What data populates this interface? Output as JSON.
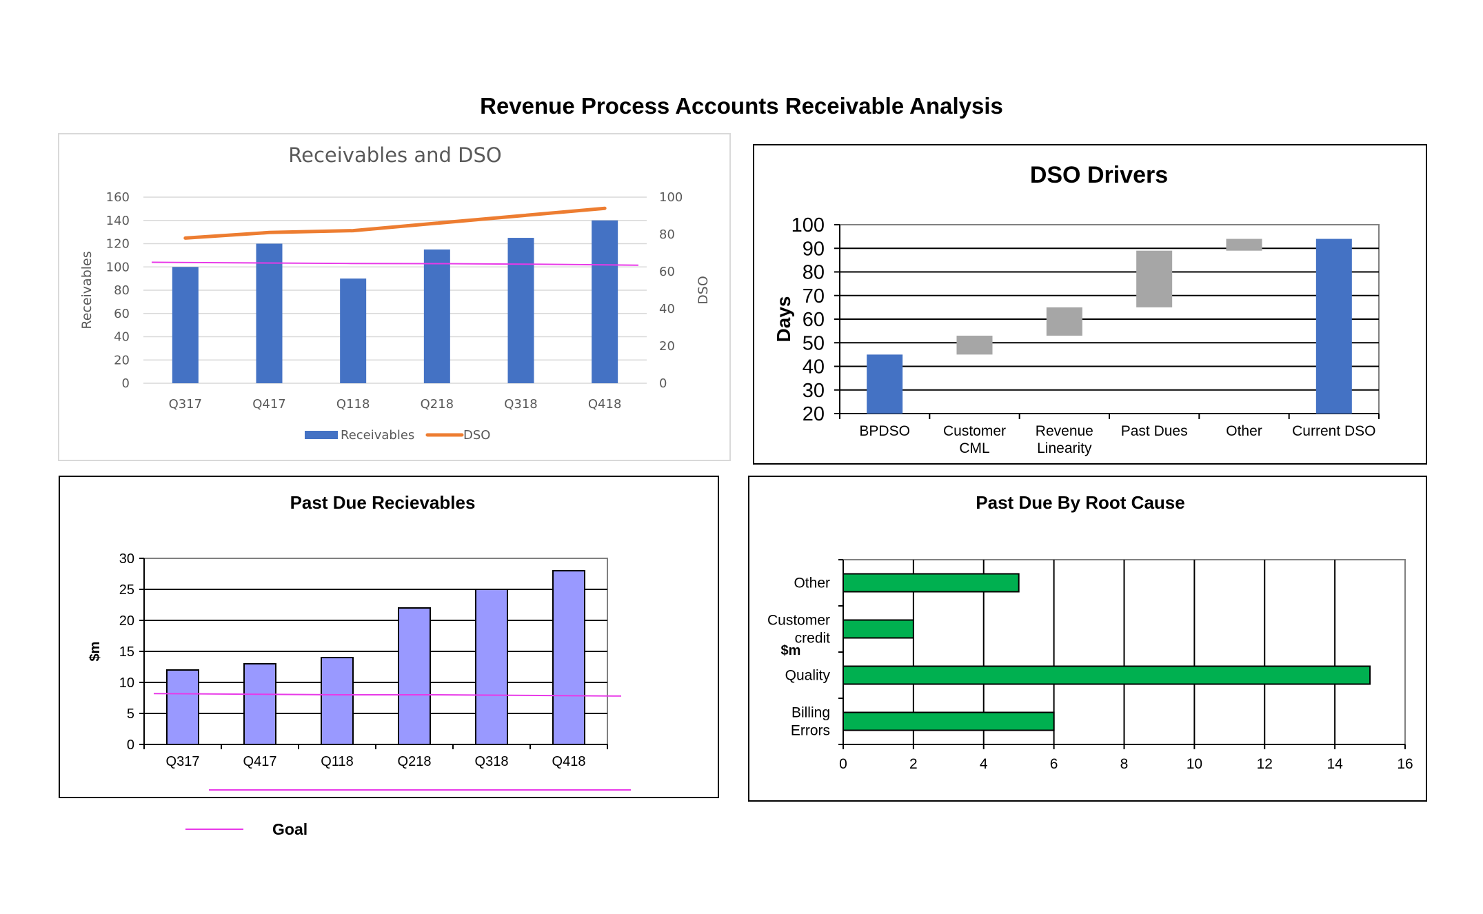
{
  "page": {
    "title": "Revenue Process Accounts Receivable Analysis"
  },
  "colors": {
    "receivables_bar": "#4472c4",
    "dso_line": "#ed7d31",
    "goal_line": "#e839e8",
    "driver_total": "#4472c4",
    "driver_step": "#a6a6a6",
    "past_due_bar": "#9999ff",
    "root_cause_bar": "#00b050"
  },
  "chart_data": [
    {
      "type": "bar",
      "title": "Receivables and DSO",
      "categories": [
        "Q317",
        "Q417",
        "Q118",
        "Q218",
        "Q318",
        "Q418"
      ],
      "series": [
        {
          "name": "Receivables",
          "type": "bar",
          "axis": "left",
          "values": [
            100,
            120,
            90,
            115,
            125,
            140
          ]
        },
        {
          "name": "DSO",
          "type": "line",
          "axis": "right",
          "values": [
            78,
            81,
            82,
            86,
            90,
            94
          ]
        },
        {
          "type": "line",
          "axis": "left",
          "values": [
            104,
            103.5,
            103,
            102.8,
            102.3,
            101.5
          ]
        }
      ],
      "ylabel": "Receivables",
      "y2label": "DSO",
      "ylim": [
        0,
        160
      ],
      "y2lim": [
        0,
        100
      ],
      "yticks": [
        0,
        20,
        40,
        60,
        80,
        100,
        120,
        140,
        160
      ],
      "y2ticks": [
        0,
        20,
        40,
        60,
        80,
        100
      ],
      "grid": true,
      "legend": "bottom"
    },
    {
      "type": "bar",
      "subtype": "waterfall",
      "title": "DSO Drivers",
      "categories": [
        "BPDSO",
        "Customer CML",
        "Revenue Linearity",
        "Past Dues",
        "Other",
        "Current DSO"
      ],
      "category_lines": [
        [
          "BPDSO"
        ],
        [
          "Customer",
          "CML"
        ],
        [
          "Revenue",
          "Linearity"
        ],
        [
          "Past Dues"
        ],
        [
          "Other"
        ],
        [
          "Current DSO"
        ]
      ],
      "ranges": [
        [
          20,
          45
        ],
        [
          45,
          53
        ],
        [
          53,
          65
        ],
        [
          65,
          89
        ],
        [
          89,
          94
        ],
        [
          20,
          94
        ]
      ],
      "kinds": [
        "total",
        "step",
        "step",
        "step",
        "step",
        "total"
      ],
      "ylabel": "Days",
      "ylim": [
        20,
        100
      ],
      "yticks": [
        20,
        30,
        40,
        50,
        60,
        70,
        80,
        90,
        100
      ],
      "grid": true
    },
    {
      "type": "bar",
      "title": "Past Due Recievables",
      "categories": [
        "Q317",
        "Q417",
        "Q118",
        "Q218",
        "Q318",
        "Q418"
      ],
      "series": [
        {
          "type": "bar",
          "values": [
            12,
            13,
            14,
            22,
            25,
            28
          ]
        },
        {
          "name": "Goal",
          "type": "line",
          "values": [
            8.2,
            8.1,
            8.0,
            8.0,
            7.9,
            7.8
          ]
        }
      ],
      "ylabel": "$m",
      "ylim": [
        0,
        30
      ],
      "yticks": [
        0,
        5,
        10,
        15,
        20,
        25,
        30
      ],
      "grid": true,
      "legend": "bottom-left"
    },
    {
      "type": "bar",
      "orientation": "horizontal",
      "title": "Past Due By Root Cause",
      "categories": [
        "Other",
        "Customer credit",
        "Quality",
        "Billing Errors"
      ],
      "category_lines": [
        [
          "Other"
        ],
        [
          "Customer",
          "credit"
        ],
        [
          "Quality"
        ],
        [
          "Billing",
          "Errors"
        ]
      ],
      "values": [
        5,
        2,
        15,
        6
      ],
      "xlabel": "$m",
      "xlim": [
        0,
        16
      ],
      "xticks": [
        0,
        2,
        4,
        6,
        8,
        10,
        12,
        14,
        16
      ],
      "grid": true
    }
  ]
}
